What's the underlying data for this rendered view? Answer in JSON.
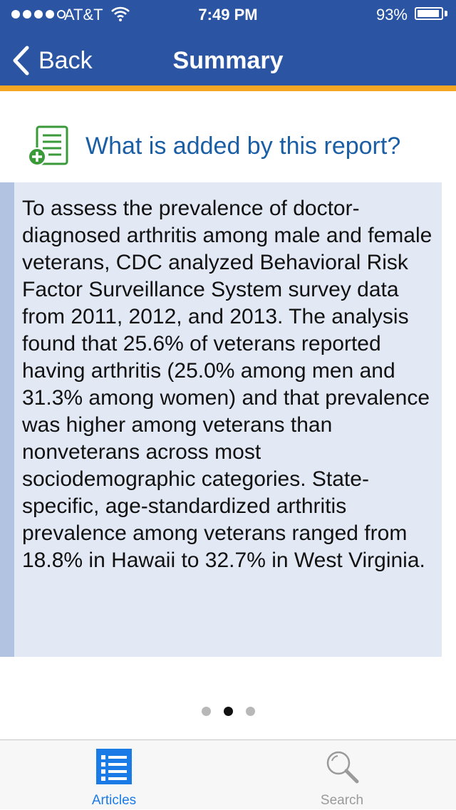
{
  "status_bar": {
    "carrier": "AT&T",
    "time": "7:49 PM",
    "battery_percent": "93%",
    "battery_level": 0.93,
    "signal_bars_filled": 4,
    "signal_bars_total": 5
  },
  "nav": {
    "back_label": "Back",
    "title": "Summary"
  },
  "section": {
    "title": "What is added by this report?",
    "icon": "document-add-icon",
    "body": "To assess the prevalence of doctor-diagnosed arthritis among male and female veterans, CDC analyzed Behavioral Risk Factor Surveillance System survey data from 2011, 2012, and 2013. The analysis found that 25.6% of veterans reported having arthritis (25.0% among men and 31.3% among women) and that prevalence was higher among veterans than nonveterans across most sociodemographic categories. State-specific, age-standardized arthritis prevalence among veterans ranged from 18.8% in Hawaii to 32.7% in West Virginia."
  },
  "pager": {
    "total": 3,
    "active_index": 1
  },
  "tabs": [
    {
      "label": "Articles",
      "icon": "list-icon",
      "selected": true
    },
    {
      "label": "Search",
      "icon": "magnifier-icon",
      "selected": false
    }
  ],
  "colors": {
    "nav_blue": "#2b55a3",
    "accent_orange": "#f5a623",
    "title_blue": "#1a5ea6",
    "box_bg": "#e2e9f5",
    "box_border": "#b2c3e1",
    "tab_active": "#1a7be6",
    "icon_green": "#3a9a3a"
  }
}
